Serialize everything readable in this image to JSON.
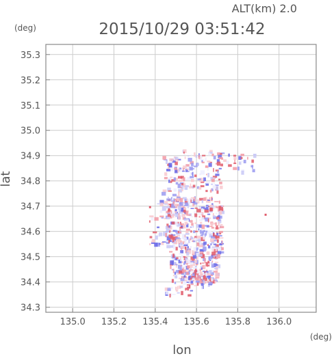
{
  "chart_data": {
    "type": "heatmap",
    "title": "2015/10/29 03:51:42",
    "altitude_label": "ALT(km) 2.0",
    "xlabel": "lon",
    "ylabel": "lat",
    "x_unit": "(deg)",
    "y_unit": "(deg)",
    "xlim": [
      134.87,
      136.18
    ],
    "ylim": [
      34.28,
      35.34
    ],
    "x_ticks": [
      "135.0",
      "135.2",
      "135.4",
      "135.6",
      "135.8",
      "136.0"
    ],
    "y_ticks": [
      "34.3",
      "34.4",
      "34.5",
      "34.6",
      "34.7",
      "34.8",
      "34.9",
      "35.0",
      "35.1",
      "35.2",
      "35.3"
    ],
    "x_ticks_values": [
      135.0,
      135.2,
      135.4,
      135.6,
      135.8,
      136.0
    ],
    "y_ticks_values": [
      34.3,
      34.4,
      34.5,
      34.6,
      34.7,
      34.8,
      34.9,
      35.0,
      35.1,
      35.2,
      35.3
    ],
    "grid": true,
    "colors": {
      "positive": "#e05a6a",
      "negative": "#6a6ae8",
      "frame": "#888888",
      "grid": "#cccccc"
    },
    "regions": [
      {
        "lon": [
          135.43,
          135.55
        ],
        "lat": [
          34.74,
          34.9
        ],
        "n": 70
      },
      {
        "lon": [
          135.53,
          135.72
        ],
        "lat": [
          34.76,
          34.93
        ],
        "n": 110
      },
      {
        "lon": [
          135.72,
          135.88
        ],
        "lat": [
          34.84,
          34.91
        ],
        "n": 25
      },
      {
        "lon": [
          135.37,
          135.55
        ],
        "lat": [
          34.55,
          34.73
        ],
        "n": 90
      },
      {
        "lon": [
          135.45,
          135.72
        ],
        "lat": [
          34.52,
          34.74
        ],
        "n": 360
      },
      {
        "lon": [
          135.47,
          135.7
        ],
        "lat": [
          34.4,
          34.52
        ],
        "n": 200
      },
      {
        "lon": [
          135.55,
          135.67
        ],
        "lat": [
          34.38,
          34.45
        ],
        "n": 60
      },
      {
        "lon": [
          135.44,
          135.57
        ],
        "lat": [
          34.35,
          34.39
        ],
        "n": 25
      }
    ],
    "isolated_points": [
      {
        "lon": 135.93,
        "lat": 34.67
      },
      {
        "lon": 135.37,
        "lat": 34.7
      }
    ]
  }
}
